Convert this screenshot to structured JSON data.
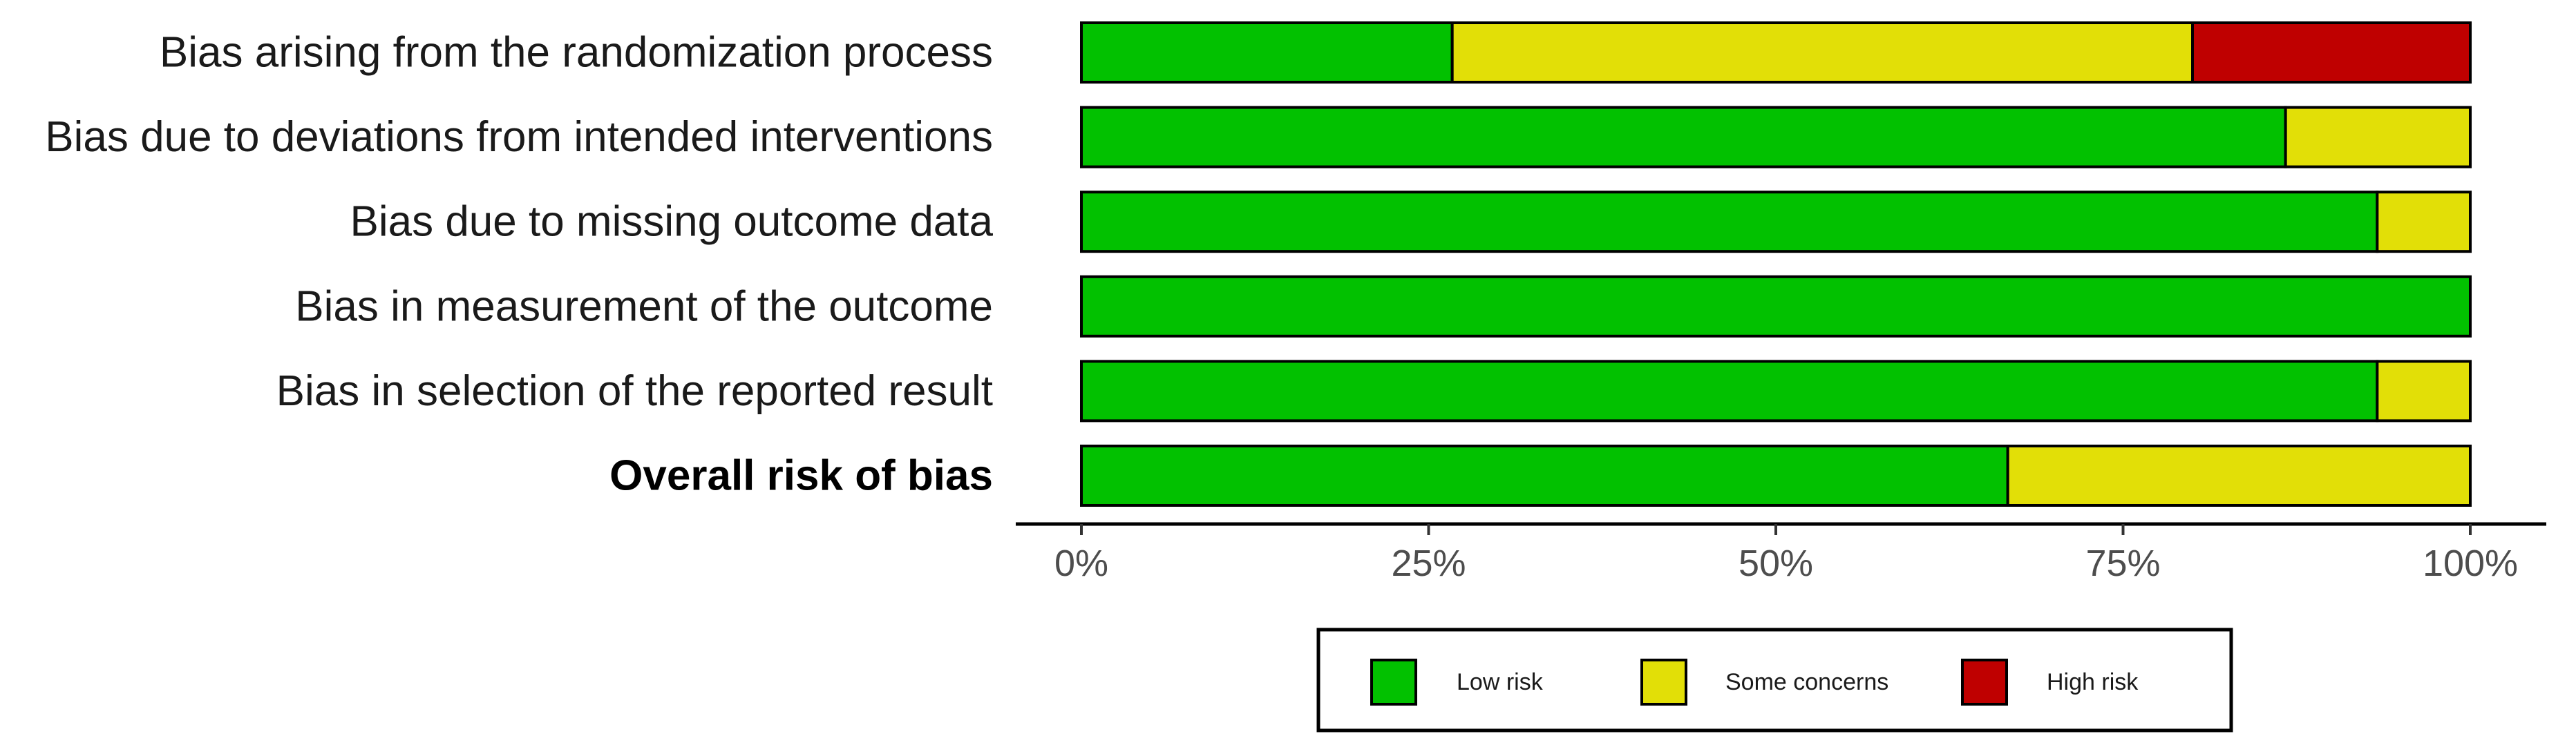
{
  "chart_data": {
    "type": "bar",
    "orientation": "horizontal",
    "stacked": true,
    "categories": [
      "Bias arising from the randomization process",
      "Bias due to deviations from intended interventions",
      "Bias due to missing outcome data",
      "Bias in measurement of the outcome",
      "Bias in selection of the reported result",
      "Overall risk of bias"
    ],
    "series": [
      {
        "name": "Low risk",
        "color": "#02C100",
        "values": [
          26.7,
          86.7,
          93.3,
          100,
          93.3,
          66.7
        ]
      },
      {
        "name": "Some concerns",
        "color": "#E2DF07",
        "values": [
          53.3,
          13.3,
          6.7,
          0,
          6.7,
          33.3
        ]
      },
      {
        "name": "High risk",
        "color": "#BF0000",
        "values": [
          20,
          0,
          0,
          0,
          0,
          0
        ]
      }
    ],
    "xlim": [
      0,
      100
    ],
    "x_ticks": [
      0,
      25,
      50,
      75,
      100
    ],
    "x_tick_labels": [
      "0%",
      "25%",
      "50%",
      "75%",
      "100%"
    ],
    "title": "",
    "xlabel": "",
    "ylabel": "",
    "grid": false,
    "legend_position": "bottom"
  }
}
